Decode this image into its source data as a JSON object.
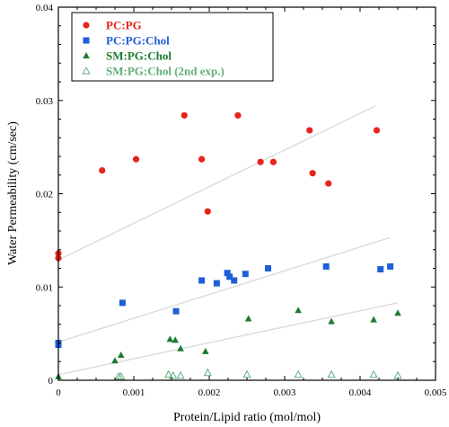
{
  "chart_data": {
    "type": "scatter",
    "xlabel": "Protein/Lipid ratio  (mol/mol)",
    "ylabel": "Water Permeability  (cm/sec)",
    "xlim": [
      0,
      0.005
    ],
    "ylim": [
      0,
      0.04
    ],
    "x_ticks": [
      0,
      0.001,
      0.002,
      0.003,
      0.004,
      0.005
    ],
    "x_tick_labels": [
      "0",
      "0.001",
      "0.002",
      "0.003",
      "0.004",
      "0.005"
    ],
    "y_ticks": [
      0,
      0.01,
      0.02,
      0.03,
      0.04
    ],
    "y_tick_labels": [
      "0",
      "0.01",
      "0.02",
      "0.03",
      "0.04"
    ],
    "grid": false,
    "legend_position": "top-left",
    "series": [
      {
        "name": "PC:PG",
        "color": "#e8231c",
        "marker": "circle-filled",
        "points": [
          [
            0,
            0.0136
          ],
          [
            0,
            0.0131
          ],
          [
            0.00058,
            0.0225
          ],
          [
            0.00103,
            0.0237
          ],
          [
            0.00167,
            0.0284
          ],
          [
            0.0019,
            0.0237
          ],
          [
            0.00198,
            0.0181
          ],
          [
            0.00238,
            0.0284
          ],
          [
            0.00268,
            0.0234
          ],
          [
            0.00285,
            0.0234
          ],
          [
            0.00333,
            0.0268
          ],
          [
            0.00337,
            0.0222
          ],
          [
            0.00358,
            0.0211
          ],
          [
            0.00422,
            0.0268
          ]
        ],
        "trend": [
          [
            0,
            0.0129
          ],
          [
            0.0042,
            0.0294
          ]
        ]
      },
      {
        "name": "PC:PG:Chol",
        "color": "#1f5fd6",
        "marker": "square-filled",
        "points": [
          [
            0,
            0.004
          ],
          [
            0,
            0.0038
          ],
          [
            0.00085,
            0.0083
          ],
          [
            0.00156,
            0.0074
          ],
          [
            0.0019,
            0.0107
          ],
          [
            0.0021,
            0.0104
          ],
          [
            0.00224,
            0.0115
          ],
          [
            0.00227,
            0.0111
          ],
          [
            0.00233,
            0.0107
          ],
          [
            0.00248,
            0.0114
          ],
          [
            0.00278,
            0.012
          ],
          [
            0.00355,
            0.0122
          ],
          [
            0.00427,
            0.0119
          ],
          [
            0.0044,
            0.0122
          ]
        ],
        "trend": [
          [
            0,
            0.0041
          ],
          [
            0.0044,
            0.0153
          ]
        ]
      },
      {
        "name": "SM:PG:Chol",
        "color": "#1d7a2f",
        "marker": "triangle-filled",
        "points": [
          [
            0,
            0.0004
          ],
          [
            0.00075,
            0.0021
          ],
          [
            0.00083,
            0.0027
          ],
          [
            0.00148,
            0.0044
          ],
          [
            0.00155,
            0.0043
          ],
          [
            0.00162,
            0.0034
          ],
          [
            0.00195,
            0.0031
          ],
          [
            0.00252,
            0.0066
          ],
          [
            0.00318,
            0.0075
          ],
          [
            0.00362,
            0.0063
          ],
          [
            0.00418,
            0.0065
          ],
          [
            0.0045,
            0.0072
          ]
        ],
        "trend": [
          [
            0,
            0.0006
          ],
          [
            0.0045,
            0.0083
          ]
        ]
      },
      {
        "name": "SM:PG:Chol (2nd exp.)",
        "color": "#5fae7a",
        "marker": "triangle-open",
        "points": [
          [
            0.0008,
            0.0004
          ],
          [
            0.00083,
            0.0004
          ],
          [
            0.00146,
            0.0006
          ],
          [
            0.00152,
            0.0005
          ],
          [
            0.00162,
            0.0005
          ],
          [
            0.00198,
            0.0008
          ],
          [
            0.0025,
            0.0006
          ],
          [
            0.00318,
            0.0006
          ],
          [
            0.00362,
            0.0006
          ],
          [
            0.00418,
            0.0006
          ],
          [
            0.0045,
            0.0005
          ]
        ]
      }
    ]
  }
}
